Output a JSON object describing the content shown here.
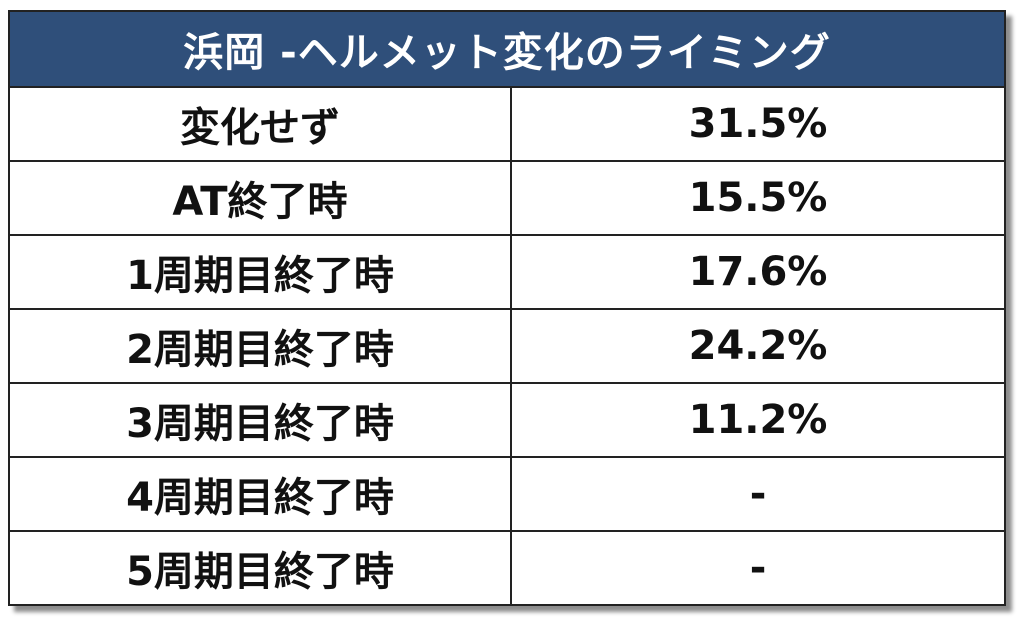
{
  "table": {
    "title": "浜岡 -ヘルメット変化のライミング",
    "rows": [
      {
        "label": "変化せず",
        "value": "31.5%"
      },
      {
        "label": "AT終了時",
        "value": "15.5%"
      },
      {
        "label": "1周期目終了時",
        "value": "17.6%"
      },
      {
        "label": "2周期目終了時",
        "value": "24.2%"
      },
      {
        "label": "3周期目終了時",
        "value": "11.2%"
      },
      {
        "label": "4周期目終了時",
        "value": "-"
      },
      {
        "label": "5周期目終了時",
        "value": "-"
      }
    ]
  },
  "colors": {
    "header_bg": "#2f4f7a",
    "header_text": "#ffffff",
    "border": "#222222"
  }
}
